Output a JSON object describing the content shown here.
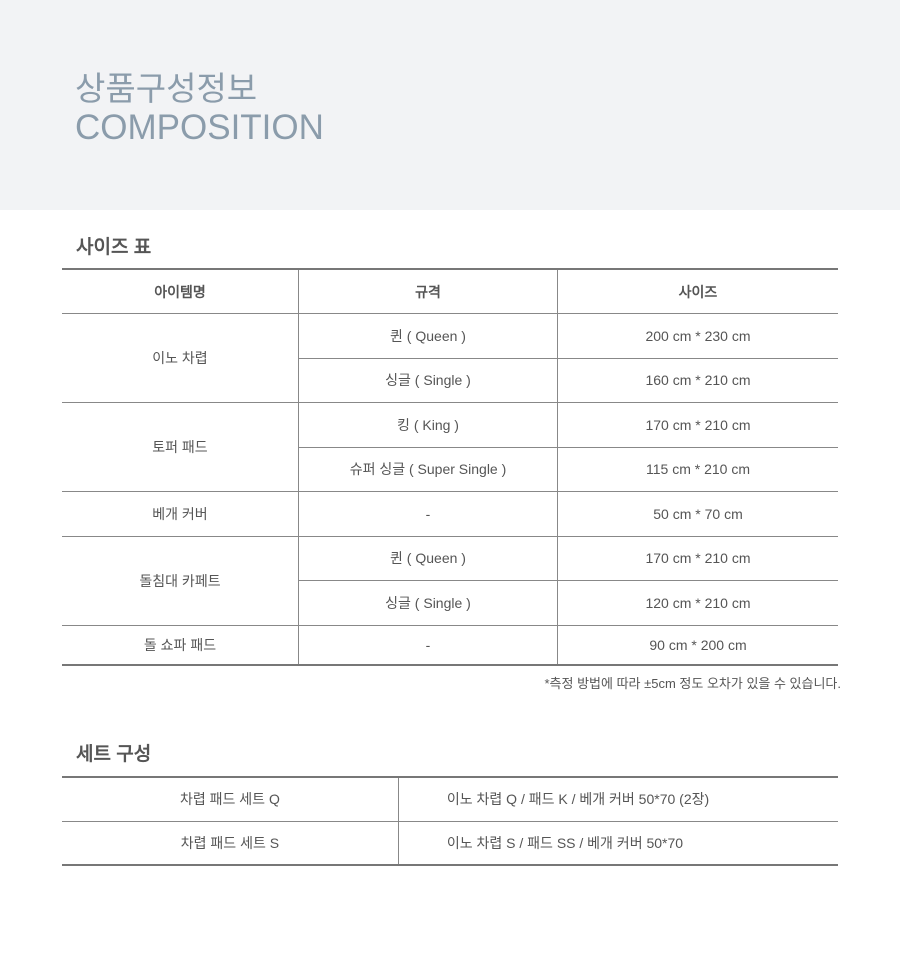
{
  "hero": {
    "title_ko": "상품구성정보",
    "title_en": "COMPOSITION"
  },
  "size_table": {
    "title": "사이즈 표",
    "headers": [
      "아이템명",
      "규격",
      "사이즈"
    ],
    "groups": [
      {
        "item": "이노 차렵",
        "rows": [
          {
            "spec": "퀸 ( Queen )",
            "size": "200 cm * 230 cm"
          },
          {
            "spec": "싱글 ( Single )",
            "size": "160 cm * 210 cm"
          }
        ]
      },
      {
        "item": "토퍼 패드",
        "rows": [
          {
            "spec": "킹 ( King )",
            "size": "170 cm * 210 cm"
          },
          {
            "spec": "슈퍼 싱글 ( Super Single )",
            "size": "115 cm * 210 cm"
          }
        ]
      },
      {
        "item": "베개 커버",
        "rows": [
          {
            "spec": "-",
            "size": "50 cm * 70 cm"
          }
        ]
      },
      {
        "item": "돌침대 카페트",
        "rows": [
          {
            "spec": "퀸 ( Queen )",
            "size": "170 cm * 210 cm"
          },
          {
            "spec": "싱글 ( Single )",
            "size": "120 cm * 210 cm"
          }
        ]
      },
      {
        "item": "돌 쇼파 패드",
        "rows": [
          {
            "spec": "-",
            "size": "90 cm * 200 cm"
          }
        ]
      }
    ],
    "note": "*측정 방법에 따라 ±5cm 정도 오차가 있을 수 있습니다."
  },
  "set_table": {
    "title": "세트 구성",
    "rows": [
      {
        "name": "차렵 패드 세트 Q",
        "contents": "이노 차렵 Q / 패드 K / 베개 커버 50*70 (2장)"
      },
      {
        "name": "차렵 패드 세트 S",
        "contents": "이노 차렵 S / 패드 SS / 베개 커버 50*70"
      }
    ]
  }
}
